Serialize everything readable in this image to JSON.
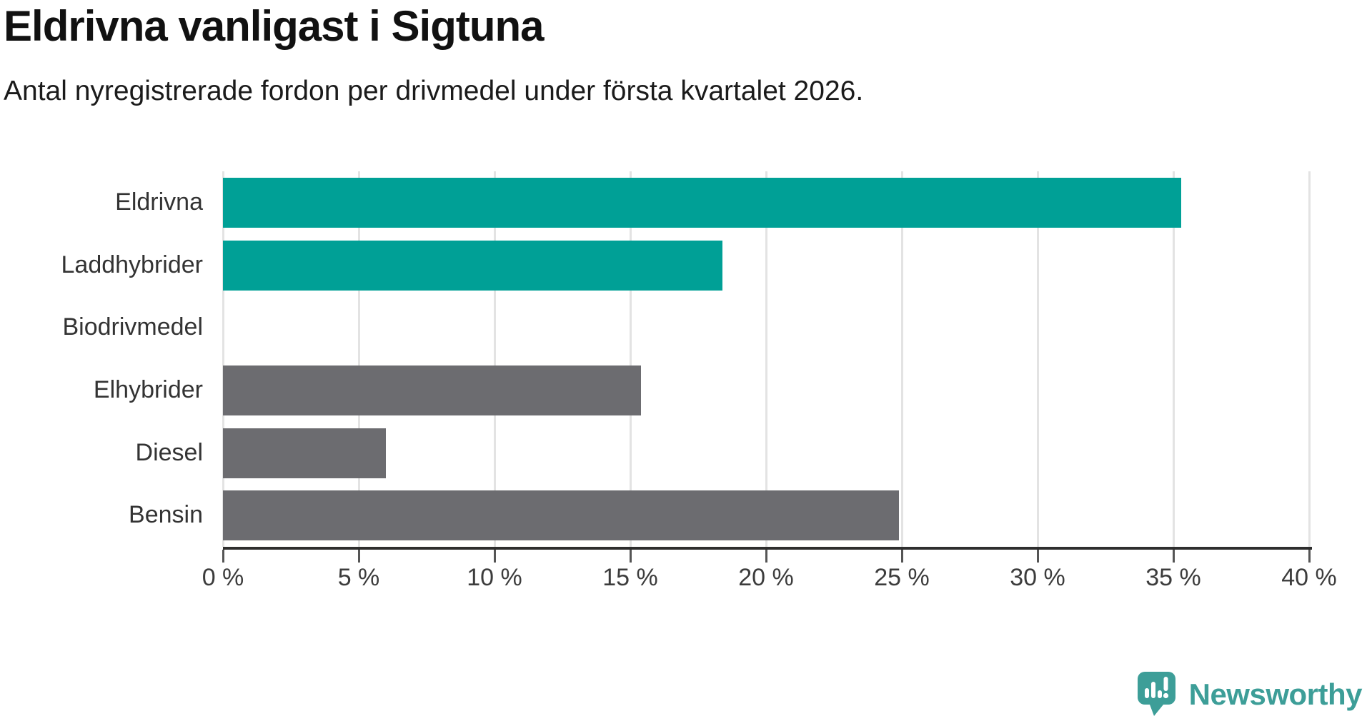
{
  "header": {
    "title": "Eldrivna vanligast i Sigtuna",
    "subtitle": "Antal nyregistrerade fordon per drivmedel under första kvartalet 2026."
  },
  "chart_data": {
    "type": "bar",
    "orientation": "horizontal",
    "title": "Eldrivna vanligast i Sigtuna",
    "subtitle": "Antal nyregistrerade fordon per drivmedel under första kvartalet 2026.",
    "categories": [
      "Eldrivna",
      "Laddhybrider",
      "Biodrivmedel",
      "Elhybrider",
      "Diesel",
      "Bensin"
    ],
    "values": [
      35.3,
      18.4,
      0,
      15.4,
      6.0,
      24.9
    ],
    "unit": "%",
    "xlim": [
      0,
      40
    ],
    "x_ticks": [
      0,
      5,
      10,
      15,
      20,
      25,
      30,
      35,
      40
    ],
    "x_tick_labels": [
      "0 %",
      "5 %",
      "10 %",
      "15 %",
      "20 %",
      "25 %",
      "30 %",
      "35 %",
      "40 %"
    ],
    "grid": true,
    "legend": "none",
    "bar_colors": [
      "#00A096",
      "#00A096",
      "#6C6C70",
      "#6C6C70",
      "#6C6C70",
      "#6C6C70"
    ],
    "highlight_color": "#00A096",
    "default_color": "#6C6C70"
  },
  "footer": {
    "brand": "Newsworthy",
    "brand_color": "#3D9E98"
  },
  "colors": {
    "background": "#FFFFFF",
    "title_text": "#111111",
    "axis_text": "#3C3C3C",
    "label_text": "#333333",
    "gridline": "#E3E3E3",
    "axis_line": "#2E2E2E",
    "teal_bar": "#00A096",
    "gray_bar": "#6C6C70"
  }
}
